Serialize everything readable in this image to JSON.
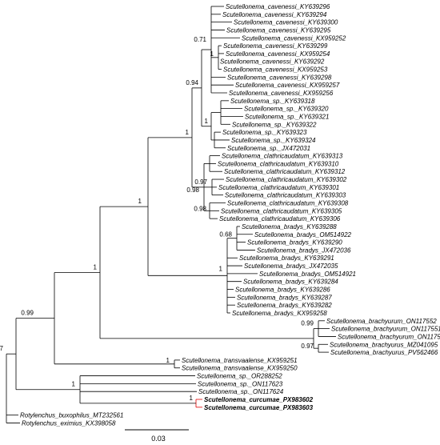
{
  "colors": {
    "default": "#000000",
    "highlight": "#e00000"
  },
  "taxa": [
    {
      "label": "Scutellonema_cavenessi_KY639296"
    },
    {
      "label": "Scutellonema_cavenessi_KY639294"
    },
    {
      "label": "Scutellonema_cavenessi_KY639300"
    },
    {
      "label": "Scutellonema_cavenessi_KY639295"
    },
    {
      "label": "Scutellonema_cavenessi_KX959252"
    },
    {
      "label": "Scutellonema_cavenessi_KY639299"
    },
    {
      "label": "Scutellonema_cavenessi_KX959254"
    },
    {
      "label": "Scutellonema_cavenessi_KY639292"
    },
    {
      "label": "Scutellonema_cavenessi_KX959253"
    },
    {
      "label": "Scutellonema_cavenessi_KY639298"
    },
    {
      "label": "Scutellonema_cavenessi_KX959257"
    },
    {
      "label": "Scutellonema_cavenessi_KX959256"
    },
    {
      "label": "Scutellonema_sp._KY639318"
    },
    {
      "label": "Scutellonema_sp._KY639320"
    },
    {
      "label": "Scutellonema_sp._KY639321"
    },
    {
      "label": "Scutellonema_sp._KY639322"
    },
    {
      "label": "Scutellonema_sp._KY639323"
    },
    {
      "label": "Scutellonema_sp._KY639324"
    },
    {
      "label": "Scutellonema_sp._JX472031"
    },
    {
      "label": "Scutellonema_clathricaudatum_KY639313"
    },
    {
      "label": "Scutellonema_clathricaudatum_KY639310"
    },
    {
      "label": "Scutellonema_clathricaudatum_KY639312"
    },
    {
      "label": "Scutellonema_clathricaudatum_KY639302"
    },
    {
      "label": "Scutellonema_clathricaudatum_KY639301"
    },
    {
      "label": "Scutellonema_clathricaudatum_KY639303"
    },
    {
      "label": "Scutellonema_clathricaudatum_KY639308"
    },
    {
      "label": "Scutellonema_clathricaudatum_KY639305"
    },
    {
      "label": "Scutellonema_clathricaudatum_KY639306"
    },
    {
      "label": "Scutellonema_bradys_KY639288"
    },
    {
      "label": "Scutellonema_bradys_OM514922"
    },
    {
      "label": "Scutellonema_bradys_KY639290"
    },
    {
      "label": "Scutellonema_bradys_JX472036"
    },
    {
      "label": "Scutellonema_bradys_KY639291"
    },
    {
      "label": "Scutellonema_bradys_JX472035"
    },
    {
      "label": "Scutellonema_bradys_OM514921"
    },
    {
      "label": "Scutellonema_bradys_KY639284"
    },
    {
      "label": "Scutellonema_bradys_KY639286"
    },
    {
      "label": "Scutellonema_bradys_KY639287"
    },
    {
      "label": "Scutellonema_bradys_KY639282"
    },
    {
      "label": "Scutellonema_bradys_KX959258"
    },
    {
      "label": "Scutellonema_brachyurum_ON117552"
    },
    {
      "label": "Scutellonema_brachyurum_ON117551"
    },
    {
      "label": "Scutellonema_brachyurum_ON117550"
    },
    {
      "label": "Scutellonema_brachyurus_MZ041095"
    },
    {
      "label": "Scutellonema_brachyurus_PV562466"
    },
    {
      "label": "Scutellonema_transvaalense_KX959251"
    },
    {
      "label": "Scutellonema_transvaalense_KX959250"
    },
    {
      "label": "Scutellonema_sp._OR288252"
    },
    {
      "label": "Scutellonema_sp._ON117623"
    },
    {
      "label": "Scutellonema_sp._ON117624"
    },
    {
      "label": "Scutellonema_curcumae_PX983602",
      "highlight": true
    },
    {
      "label": "Scutellonema_curcumae_PX983603",
      "highlight": true
    },
    {
      "label": "Rotylenchus_buxophilus_MT232561"
    },
    {
      "label": "Rotylenchus_eximius_KX398058"
    }
  ],
  "support_values": [
    "0.71",
    "1",
    "0.94",
    "1",
    "1",
    "0.98",
    "0.97",
    "0.98",
    "1",
    "0.68",
    "1",
    "0.99",
    "0.97",
    "1",
    "0.99",
    "1",
    "1",
    "1",
    "0.97"
  ],
  "scale_bar": {
    "label": "0.03"
  }
}
